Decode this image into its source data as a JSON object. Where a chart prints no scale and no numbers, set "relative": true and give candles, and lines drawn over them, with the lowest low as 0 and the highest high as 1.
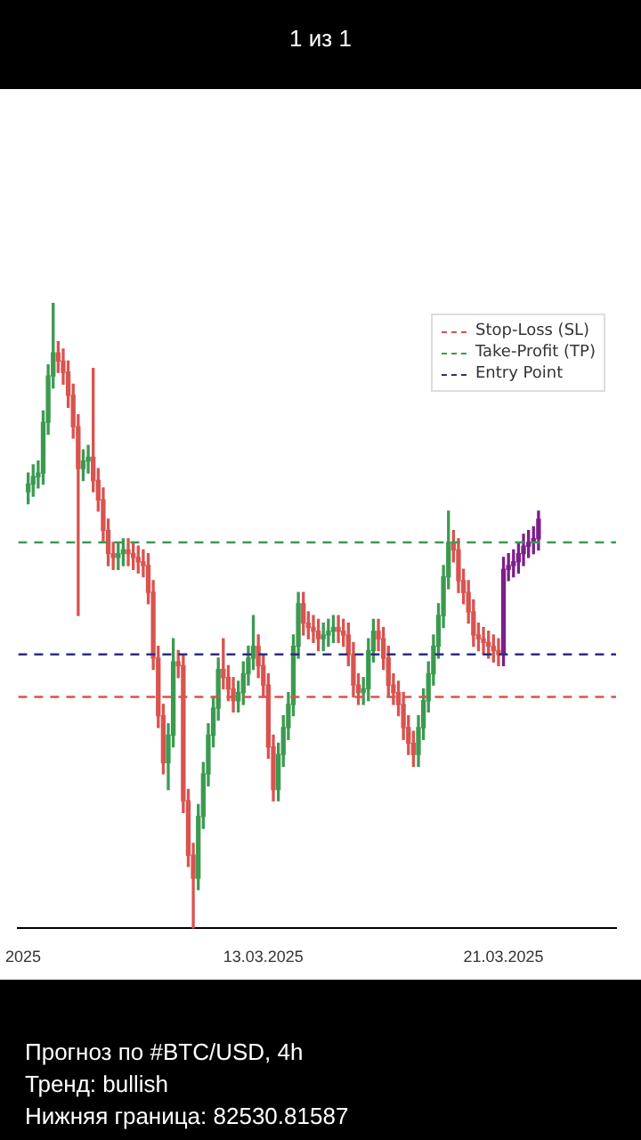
{
  "chart_data": {
    "type": "candlestick",
    "relative": true,
    "annotations": [
      "1 из 1",
      "Прогноз по #BTC/USD, 4h",
      "Тренд: bullish",
      "Нижняя граница: 82530.81587"
    ],
    "xlim": [
      "2025-03-04T20:00",
      "2025-03-24T18:00"
    ],
    "xticks": [
      {
        "value": "2025-03-05",
        "label": "2025"
      },
      {
        "value": "2025-03-13",
        "label": "13.03.2025"
      },
      {
        "value": "2025-03-21",
        "label": "21.03.2025"
      }
    ],
    "legend": "top right",
    "ref_lines": [
      {
        "axis": "y",
        "value": 0.37,
        "label": "Stop-Loss (SL)",
        "color": "#d9534f",
        "line_style": "dashed"
      },
      {
        "axis": "y",
        "value": 0.617,
        "label": "Take-Profit (TP)",
        "color": "#3c9a50",
        "line_style": "dashed"
      },
      {
        "axis": "y",
        "value": 0.438,
        "label": "Entry Point",
        "color": "#2e2e7a",
        "line_style": "dashed"
      }
    ],
    "series": [
      {
        "x": [
          "2025-03-05T04:00",
          "2025-03-05T08:00",
          "2025-03-05T12:00",
          "2025-03-05T16:00",
          "2025-03-05T20:00",
          "2025-03-06T00:00",
          "2025-03-06T04:00",
          "2025-03-06T08:00",
          "2025-03-06T12:00",
          "2025-03-06T16:00",
          "2025-03-06T20:00",
          "2025-03-07T00:00",
          "2025-03-07T04:00",
          "2025-03-07T08:00",
          "2025-03-07T12:00",
          "2025-03-07T16:00",
          "2025-03-07T20:00",
          "2025-03-08T00:00",
          "2025-03-08T04:00",
          "2025-03-08T08:00",
          "2025-03-08T12:00",
          "2025-03-08T16:00",
          "2025-03-08T20:00",
          "2025-03-09T00:00",
          "2025-03-09T04:00",
          "2025-03-09T08:00",
          "2025-03-09T12:00",
          "2025-03-09T16:00",
          "2025-03-09T20:00",
          "2025-03-10T00:00",
          "2025-03-10T04:00",
          "2025-03-10T08:00",
          "2025-03-10T12:00",
          "2025-03-10T16:00",
          "2025-03-10T20:00",
          "2025-03-11T00:00",
          "2025-03-11T04:00",
          "2025-03-11T08:00",
          "2025-03-11T12:00",
          "2025-03-11T16:00",
          "2025-03-11T20:00",
          "2025-03-12T00:00",
          "2025-03-12T04:00",
          "2025-03-12T08:00",
          "2025-03-12T12:00",
          "2025-03-12T16:00",
          "2025-03-12T20:00",
          "2025-03-13T00:00",
          "2025-03-13T04:00",
          "2025-03-13T08:00",
          "2025-03-13T12:00",
          "2025-03-13T16:00",
          "2025-03-13T20:00",
          "2025-03-14T00:00",
          "2025-03-14T04:00",
          "2025-03-14T08:00",
          "2025-03-14T12:00",
          "2025-03-14T16:00",
          "2025-03-14T20:00",
          "2025-03-15T00:00",
          "2025-03-15T04:00",
          "2025-03-15T08:00",
          "2025-03-15T12:00",
          "2025-03-15T16:00",
          "2025-03-15T20:00",
          "2025-03-16T00:00",
          "2025-03-16T04:00",
          "2025-03-16T08:00",
          "2025-03-16T12:00",
          "2025-03-16T16:00",
          "2025-03-16T20:00",
          "2025-03-17T00:00",
          "2025-03-17T04:00",
          "2025-03-17T08:00",
          "2025-03-17T12:00",
          "2025-03-17T16:00",
          "2025-03-17T20:00",
          "2025-03-18T00:00",
          "2025-03-18T04:00",
          "2025-03-18T08:00",
          "2025-03-18T12:00",
          "2025-03-18T16:00",
          "2025-03-18T20:00",
          "2025-03-19T00:00",
          "2025-03-19T04:00",
          "2025-03-19T08:00",
          "2025-03-19T12:00",
          "2025-03-19T16:00",
          "2025-03-19T20:00",
          "2025-03-20T00:00",
          "2025-03-20T04:00",
          "2025-03-20T08:00",
          "2025-03-20T12:00",
          "2025-03-20T16:00",
          "2025-03-20T20:00"
        ],
        "ohlc": [
          [
            0.698,
            0.728,
            0.679,
            0.71
          ],
          [
            0.71,
            0.741,
            0.691,
            0.722
          ],
          [
            0.722,
            0.747,
            0.704,
            0.728
          ],
          [
            0.728,
            0.827,
            0.71,
            0.809
          ],
          [
            0.809,
            0.901,
            0.79,
            0.883
          ],
          [
            0.883,
            1,
            0.864,
            0.92
          ],
          [
            0.92,
            0.938,
            0.889,
            0.907
          ],
          [
            0.907,
            0.926,
            0.87,
            0.889
          ],
          [
            0.889,
            0.907,
            0.833,
            0.852
          ],
          [
            0.852,
            0.87,
            0.784,
            0.802
          ],
          [
            0.802,
            0.821,
            0.5,
            0.735
          ],
          [
            0.735,
            0.765,
            0.716,
            0.747
          ],
          [
            0.747,
            0.772,
            0.728,
            0.753
          ],
          [
            0.753,
            0.895,
            0.698,
            0.716
          ],
          [
            0.716,
            0.735,
            0.667,
            0.685
          ],
          [
            0.685,
            0.704,
            0.617,
            0.636
          ],
          [
            0.636,
            0.654,
            0.58,
            0.599
          ],
          [
            0.599,
            0.617,
            0.574,
            0.593
          ],
          [
            0.593,
            0.617,
            0.574,
            0.599
          ],
          [
            0.599,
            0.623,
            0.58,
            0.605
          ],
          [
            0.605,
            0.623,
            0.58,
            0.599
          ],
          [
            0.599,
            0.617,
            0.574,
            0.593
          ],
          [
            0.593,
            0.611,
            0.568,
            0.586
          ],
          [
            0.586,
            0.605,
            0.562,
            0.58
          ],
          [
            0.58,
            0.599,
            0.519,
            0.537
          ],
          [
            0.537,
            0.556,
            0.414,
            0.432
          ],
          [
            0.432,
            0.451,
            0.321,
            0.34
          ],
          [
            0.34,
            0.358,
            0.247,
            0.265
          ],
          [
            0.265,
            0.327,
            0.222,
            0.309
          ],
          [
            0.309,
            0.463,
            0.29,
            0.426
          ],
          [
            0.426,
            0.444,
            0.401,
            0.42
          ],
          [
            0.42,
            0.438,
            0.185,
            0.204
          ],
          [
            0.204,
            0.222,
            0.099,
            0.117
          ],
          [
            0.117,
            0.136,
            0,
            0.08
          ],
          [
            0.08,
            0.198,
            0.062,
            0.179
          ],
          [
            0.179,
            0.265,
            0.16,
            0.247
          ],
          [
            0.247,
            0.327,
            0.228,
            0.309
          ],
          [
            0.309,
            0.37,
            0.29,
            0.352
          ],
          [
            0.352,
            0.432,
            0.333,
            0.414
          ],
          [
            0.414,
            0.463,
            0.383,
            0.401
          ],
          [
            0.401,
            0.42,
            0.364,
            0.383
          ],
          [
            0.383,
            0.401,
            0.346,
            0.364
          ],
          [
            0.364,
            0.395,
            0.346,
            0.377
          ],
          [
            0.377,
            0.426,
            0.358,
            0.407
          ],
          [
            0.407,
            0.451,
            0.389,
            0.432
          ],
          [
            0.432,
            0.5,
            0.414,
            0.451
          ],
          [
            0.451,
            0.469,
            0.401,
            0.42
          ],
          [
            0.42,
            0.438,
            0.37,
            0.389
          ],
          [
            0.389,
            0.407,
            0.272,
            0.29
          ],
          [
            0.29,
            0.309,
            0.204,
            0.222
          ],
          [
            0.222,
            0.296,
            0.204,
            0.278
          ],
          [
            0.278,
            0.34,
            0.259,
            0.321
          ],
          [
            0.321,
            0.377,
            0.302,
            0.358
          ],
          [
            0.358,
            0.469,
            0.34,
            0.451
          ],
          [
            0.451,
            0.537,
            0.432,
            0.519
          ],
          [
            0.519,
            0.537,
            0.469,
            0.488
          ],
          [
            0.488,
            0.506,
            0.463,
            0.481
          ],
          [
            0.481,
            0.5,
            0.457,
            0.475
          ],
          [
            0.475,
            0.494,
            0.444,
            0.463
          ],
          [
            0.463,
            0.488,
            0.444,
            0.469
          ],
          [
            0.469,
            0.494,
            0.451,
            0.475
          ],
          [
            0.475,
            0.5,
            0.457,
            0.481
          ],
          [
            0.481,
            0.5,
            0.457,
            0.475
          ],
          [
            0.475,
            0.494,
            0.451,
            0.469
          ],
          [
            0.469,
            0.488,
            0.42,
            0.438
          ],
          [
            0.438,
            0.457,
            0.37,
            0.389
          ],
          [
            0.389,
            0.407,
            0.358,
            0.377
          ],
          [
            0.377,
            0.401,
            0.358,
            0.383
          ],
          [
            0.383,
            0.463,
            0.364,
            0.444
          ],
          [
            0.444,
            0.494,
            0.426,
            0.475
          ],
          [
            0.475,
            0.494,
            0.444,
            0.463
          ],
          [
            0.463,
            0.481,
            0.414,
            0.432
          ],
          [
            0.432,
            0.451,
            0.37,
            0.389
          ],
          [
            0.389,
            0.407,
            0.358,
            0.377
          ],
          [
            0.377,
            0.395,
            0.34,
            0.358
          ],
          [
            0.358,
            0.377,
            0.302,
            0.321
          ],
          [
            0.321,
            0.34,
            0.278,
            0.296
          ],
          [
            0.296,
            0.315,
            0.259,
            0.278
          ],
          [
            0.278,
            0.34,
            0.259,
            0.321
          ],
          [
            0.321,
            0.383,
            0.302,
            0.364
          ],
          [
            0.364,
            0.426,
            0.346,
            0.407
          ],
          [
            0.407,
            0.469,
            0.389,
            0.451
          ],
          [
            0.451,
            0.519,
            0.432,
            0.5
          ],
          [
            0.5,
            0.58,
            0.481,
            0.562
          ],
          [
            0.562,
            0.667,
            0.543,
            0.617
          ],
          [
            0.617,
            0.636,
            0.586,
            0.605
          ],
          [
            0.605,
            0.623,
            0.537,
            0.556
          ],
          [
            0.556,
            0.574,
            0.519,
            0.537
          ],
          [
            0.537,
            0.556,
            0.488,
            0.506
          ],
          [
            0.506,
            0.525,
            0.451,
            0.469
          ],
          [
            0.469,
            0.488,
            0.444,
            0.463
          ],
          [
            0.463,
            0.481,
            0.438,
            0.457
          ],
          [
            0.457,
            0.475,
            0.432,
            0.451
          ],
          [
            0.451,
            0.469,
            0.426,
            0.444
          ],
          [
            0.444,
            0.463,
            0.42,
            0.438
          ]
        ],
        "colors": [
          "#3c9a50",
          "#3c9a50",
          "#3c9a50",
          "#3c9a50",
          "#3c9a50",
          "#3c9a50",
          "#d9534f",
          "#d9534f",
          "#d9534f",
          "#d9534f",
          "#d9534f",
          "#3c9a50",
          "#3c9a50",
          "#d9534f",
          "#d9534f",
          "#d9534f",
          "#d9534f",
          "#d9534f",
          "#3c9a50",
          "#3c9a50",
          "#d9534f",
          "#d9534f",
          "#d9534f",
          "#d9534f",
          "#d9534f",
          "#d9534f",
          "#d9534f",
          "#d9534f",
          "#3c9a50",
          "#3c9a50",
          "#d9534f",
          "#d9534f",
          "#d9534f",
          "#d9534f",
          "#3c9a50",
          "#3c9a50",
          "#3c9a50",
          "#3c9a50",
          "#3c9a50",
          "#d9534f",
          "#d9534f",
          "#d9534f",
          "#3c9a50",
          "#3c9a50",
          "#3c9a50",
          "#3c9a50",
          "#d9534f",
          "#d9534f",
          "#d9534f",
          "#d9534f",
          "#3c9a50",
          "#3c9a50",
          "#3c9a50",
          "#3c9a50",
          "#3c9a50",
          "#d9534f",
          "#d9534f",
          "#d9534f",
          "#d9534f",
          "#3c9a50",
          "#3c9a50",
          "#3c9a50",
          "#d9534f",
          "#d9534f",
          "#d9534f",
          "#d9534f",
          "#d9534f",
          "#3c9a50",
          "#3c9a50",
          "#3c9a50",
          "#d9534f",
          "#d9534f",
          "#d9534f",
          "#d9534f",
          "#d9534f",
          "#d9534f",
          "#d9534f",
          "#d9534f",
          "#3c9a50",
          "#3c9a50",
          "#3c9a50",
          "#3c9a50",
          "#3c9a50",
          "#3c9a50",
          "#3c9a50",
          "#d9534f",
          "#d9534f",
          "#d9534f",
          "#d9534f",
          "#d9534f",
          "#d9534f",
          "#d9534f",
          "#d9534f",
          "#d9534f",
          "#d9534f"
        ]
      },
      {
        "color": "#7b1f8a",
        "x": [
          "2025-03-21T00:00",
          "2025-03-21T04:00",
          "2025-03-21T08:00",
          "2025-03-21T12:00",
          "2025-03-21T16:00",
          "2025-03-21T20:00",
          "2025-03-22T00:00",
          "2025-03-22T04:00"
        ],
        "ohlc": [
          [
            0.438,
            0.593,
            0.42,
            0.574
          ],
          [
            0.574,
            0.599,
            0.556,
            0.58
          ],
          [
            0.58,
            0.605,
            0.562,
            0.586
          ],
          [
            0.586,
            0.617,
            0.568,
            0.599
          ],
          [
            0.599,
            0.63,
            0.58,
            0.611
          ],
          [
            0.611,
            0.636,
            0.593,
            0.617
          ],
          [
            0.617,
            0.642,
            0.599,
            0.623
          ],
          [
            0.623,
            0.667,
            0.605,
            0.654
          ]
        ]
      }
    ]
  }
}
